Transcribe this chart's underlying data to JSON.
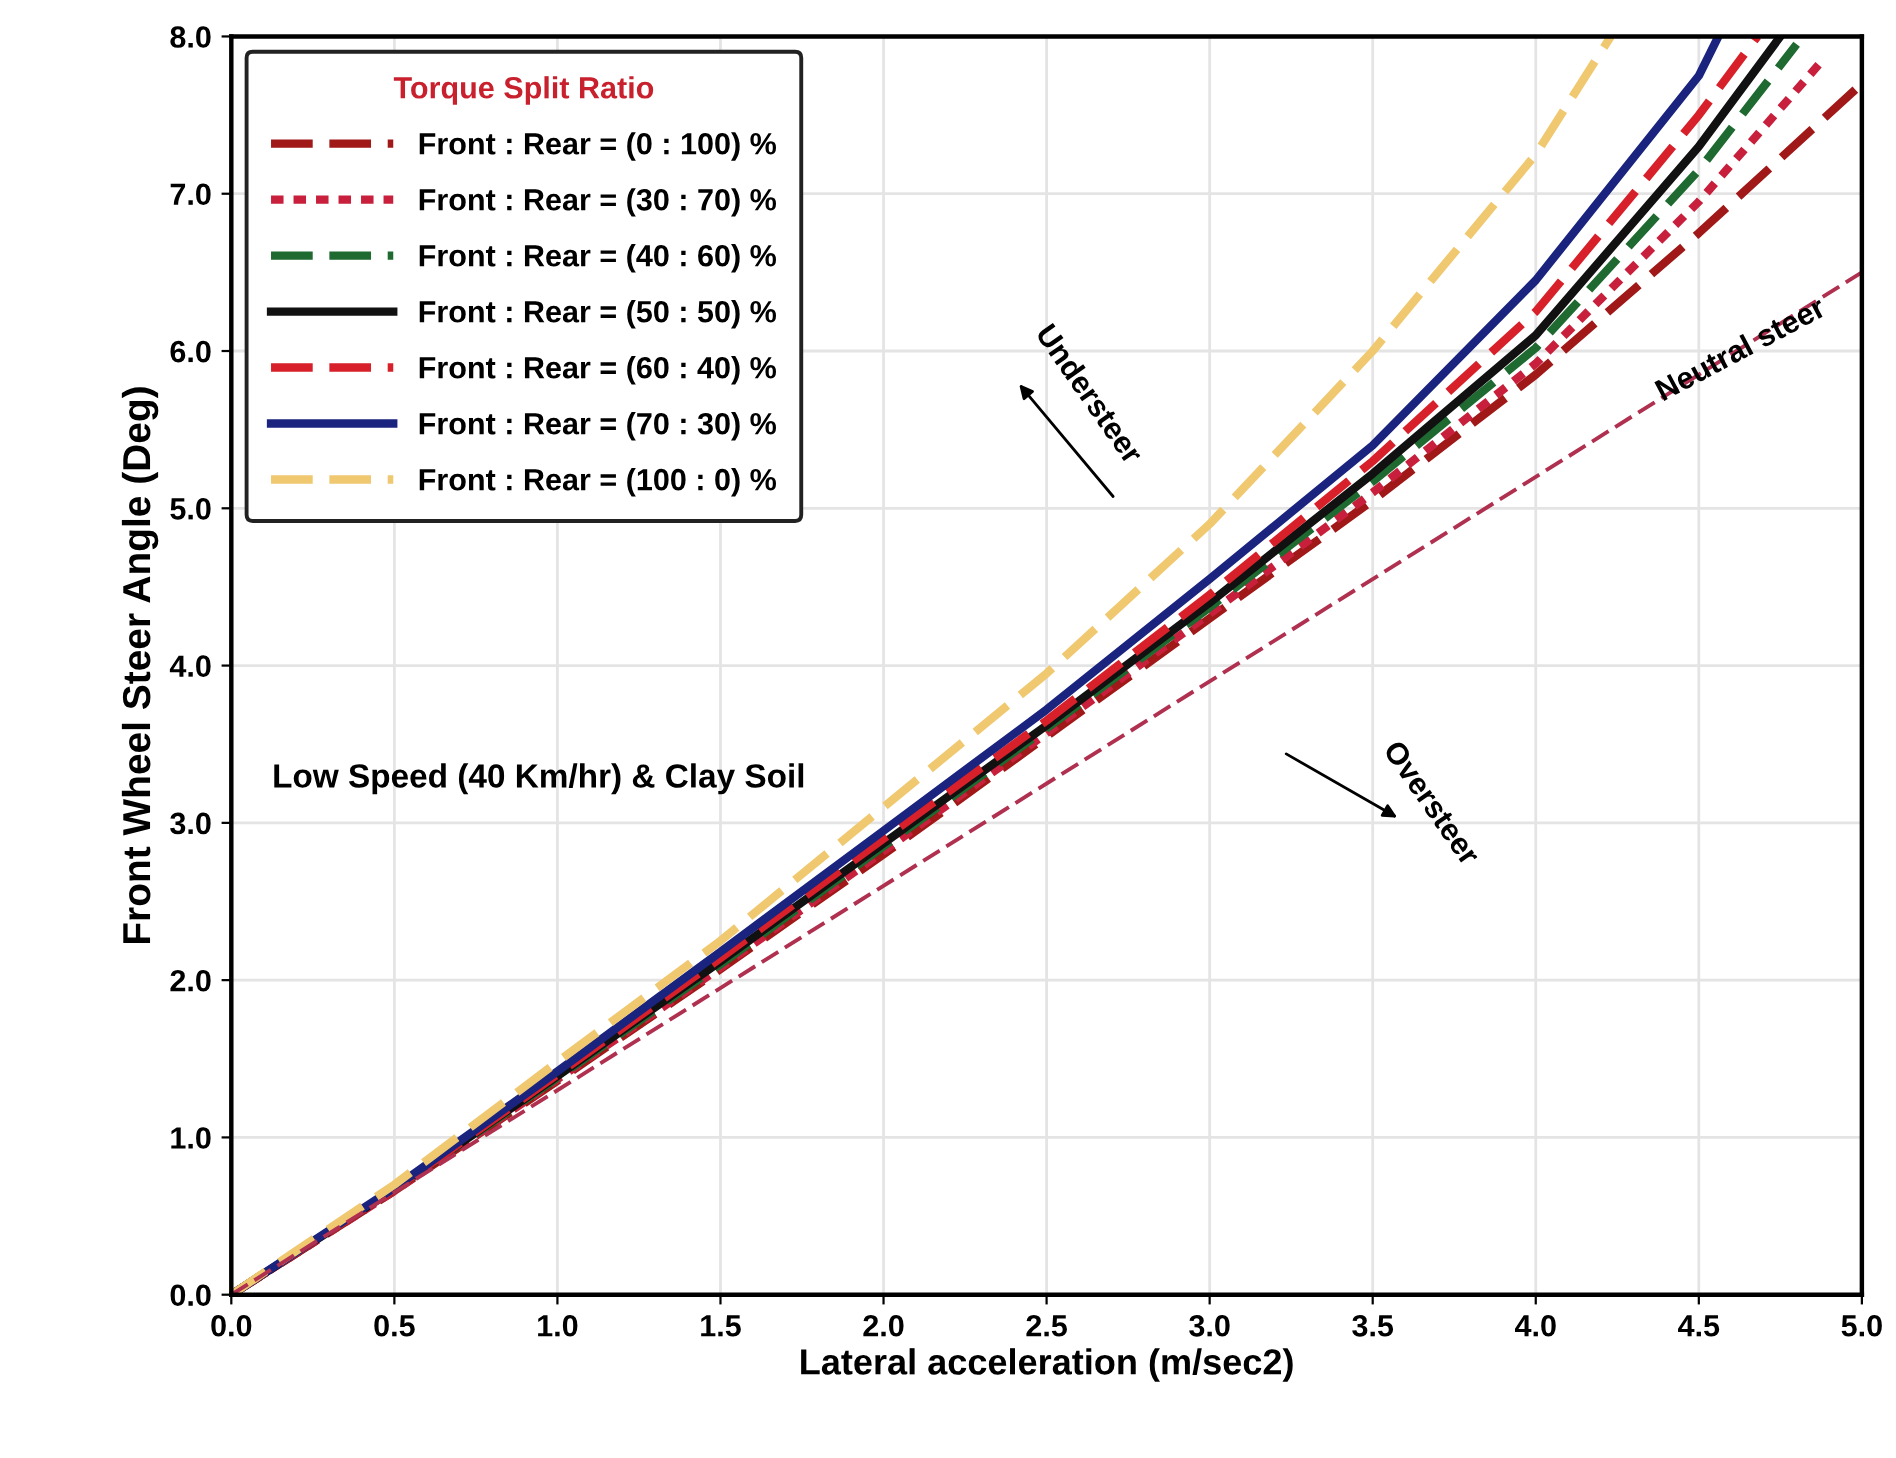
{
  "chart_data": {
    "type": "line",
    "xlabel": "Lateral acceleration (m/sec2)",
    "ylabel": "Front Wheel Steer Angle (Deg)",
    "legend_title": "Torque Split Ratio",
    "xlim": [
      0,
      5
    ],
    "ylim": [
      0,
      8
    ],
    "xticks": [
      {
        "value": 0,
        "label": "0.0"
      },
      {
        "value": 0.5,
        "label": "0.5"
      },
      {
        "value": 1,
        "label": "1.0"
      },
      {
        "value": 1.5,
        "label": "1.5"
      },
      {
        "value": 2,
        "label": "2.0"
      },
      {
        "value": 2.5,
        "label": "2.5"
      },
      {
        "value": 3,
        "label": "3.0"
      },
      {
        "value": 3.5,
        "label": "3.5"
      },
      {
        "value": 4,
        "label": "4.0"
      },
      {
        "value": 4.5,
        "label": "4.5"
      },
      {
        "value": 5,
        "label": "5.0"
      }
    ],
    "yticks": [
      {
        "value": 0,
        "label": "0.0"
      },
      {
        "value": 1,
        "label": "1.0"
      },
      {
        "value": 2,
        "label": "2.0"
      },
      {
        "value": 3,
        "label": "3.0"
      },
      {
        "value": 4,
        "label": "4.0"
      },
      {
        "value": 5,
        "label": "5.0"
      },
      {
        "value": 6,
        "label": "6.0"
      },
      {
        "value": 7,
        "label": "7.0"
      },
      {
        "value": 8,
        "label": "8.0"
      }
    ],
    "grid": true,
    "legend": "top left",
    "series": [
      {
        "name": "Front : Rear = (0 : 100) %",
        "color": "#a01818",
        "line_style": "dashed",
        "x": [
          0,
          0.5,
          1,
          1.5,
          2,
          2.5,
          3,
          3.5,
          4,
          4.5,
          5
        ],
        "values": [
          0,
          0.66,
          1.36,
          2.07,
          2.8,
          3.55,
          4.3,
          5.05,
          5.85,
          6.75,
          7.7
        ]
      },
      {
        "name": "Front : Rear = (30 : 70) %",
        "color": "#c8203c",
        "line_style": "dotted",
        "x": [
          0,
          0.5,
          1,
          1.5,
          2,
          2.5,
          3,
          3.5,
          4,
          4.5,
          4.88
        ],
        "values": [
          0,
          0.66,
          1.37,
          2.08,
          2.82,
          3.57,
          4.33,
          5.1,
          5.92,
          6.95,
          7.85
        ]
      },
      {
        "name": "Front : Rear = (40 : 60) %",
        "color": "#1e6a30",
        "line_style": "dashed",
        "x": [
          0,
          0.5,
          1,
          1.5,
          2,
          2.5,
          3,
          3.5,
          4,
          4.5,
          4.8
        ],
        "values": [
          0,
          0.67,
          1.38,
          2.1,
          2.85,
          3.6,
          4.37,
          5.17,
          6.02,
          7.15,
          7.95
        ]
      },
      {
        "name": "Front : Rear = (50 : 50) %",
        "color": "#111111",
        "line_style": "solid",
        "x": [
          0,
          0.5,
          1,
          1.5,
          2,
          2.5,
          3,
          3.5,
          4,
          4.5,
          4.75
        ],
        "values": [
          0,
          0.67,
          1.39,
          2.12,
          2.87,
          3.62,
          4.4,
          5.22,
          6.1,
          7.3,
          8.0
        ]
      },
      {
        "name": "Front : Rear = (60 : 40) %",
        "color": "#d8202a",
        "line_style": "dashed",
        "x": [
          0,
          0.5,
          1,
          1.5,
          2,
          2.5,
          3,
          3.5,
          4,
          4.5,
          4.68
        ],
        "values": [
          0,
          0.67,
          1.4,
          2.14,
          2.9,
          3.65,
          4.45,
          5.3,
          6.25,
          7.5,
          8.0
        ]
      },
      {
        "name": "Front : Rear = (70 : 30) %",
        "color": "#1a237e",
        "line_style": "solid",
        "x": [
          0,
          0.5,
          1,
          1.5,
          2,
          2.5,
          3,
          3.5,
          4,
          4.5,
          4.56
        ],
        "values": [
          0,
          0.68,
          1.42,
          2.18,
          2.95,
          3.72,
          4.55,
          5.4,
          6.45,
          7.75,
          8.0
        ]
      },
      {
        "name": "Front : Rear = (100 : 0) %",
        "color": "#f0c870",
        "line_style": "dashed",
        "x": [
          0,
          0.5,
          1,
          1.5,
          2,
          2.5,
          3,
          3.5,
          4,
          4.23
        ],
        "values": [
          0,
          0.7,
          1.48,
          2.25,
          3.1,
          3.95,
          4.9,
          6.0,
          7.25,
          8.0
        ]
      },
      {
        "color": "#b03050",
        "line_style": "dashed",
        "x": [
          0,
          5
        ],
        "values": [
          0,
          6.5
        ]
      }
    ],
    "annotations": [
      {
        "text": "Neutral steer",
        "x": 4.63,
        "y": 6.0
      },
      "Understeer",
      "Oversteer",
      "Low Speed (40 Km/hr) & Clay Soil"
    ]
  }
}
